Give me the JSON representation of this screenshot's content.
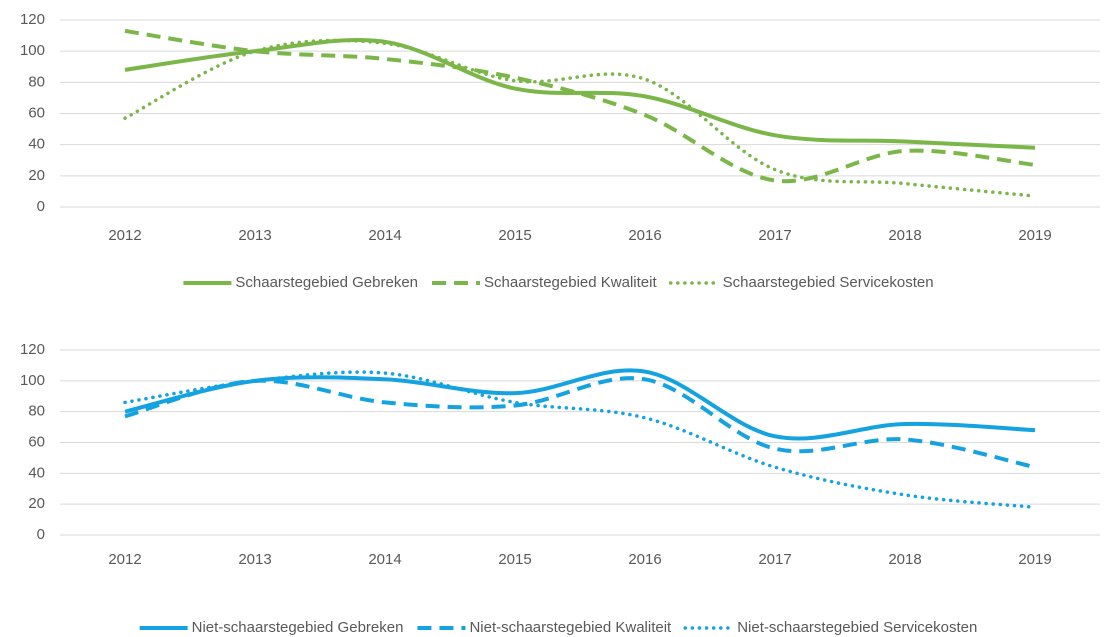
{
  "chart_data": [
    {
      "type": "line",
      "categories": [
        "2012",
        "2013",
        "2014",
        "2015",
        "2016",
        "2017",
        "2018",
        "2019"
      ],
      "series": [
        {
          "name": "Schaarstegebied Gebreken",
          "color": "#7ab648",
          "style": "solid",
          "values": [
            88,
            100,
            106,
            76,
            71,
            46,
            42,
            38
          ]
        },
        {
          "name": "Schaarstegebied Kwaliteit",
          "color": "#7ab648",
          "style": "dashed",
          "values": [
            113,
            100,
            95,
            83,
            59,
            17,
            36,
            27
          ]
        },
        {
          "name": "Schaarstegebied Servicekosten",
          "color": "#7ab648",
          "style": "dotted",
          "values": [
            57,
            100,
            105,
            81,
            82,
            24,
            15,
            7
          ]
        }
      ],
      "ylim": [
        0,
        120
      ],
      "yticks": [
        0,
        20,
        40,
        60,
        80,
        100,
        120
      ],
      "grid": true,
      "legend": "bottom"
    },
    {
      "type": "line",
      "categories": [
        "2012",
        "2013",
        "2014",
        "2015",
        "2016",
        "2017",
        "2018",
        "2019"
      ],
      "series": [
        {
          "name": "Niet-schaarstegebied Gebreken",
          "color": "#14a3e0",
          "style": "solid",
          "values": [
            80,
            100,
            101,
            92,
            106,
            64,
            72,
            68
          ]
        },
        {
          "name": "Niet-schaarstegebied Kwaliteit",
          "color": "#14a3e0",
          "style": "dashed",
          "values": [
            77,
            100,
            86,
            84,
            101,
            56,
            62,
            44
          ]
        },
        {
          "name": "Niet-schaarstegebied Servicekosten",
          "color": "#14a3e0",
          "style": "dotted",
          "values": [
            86,
            100,
            105,
            86,
            76,
            44,
            26,
            18
          ]
        }
      ],
      "ylim": [
        0,
        120
      ],
      "yticks": [
        0,
        20,
        40,
        60,
        80,
        100,
        120
      ],
      "grid": true,
      "legend": "bottom"
    }
  ]
}
